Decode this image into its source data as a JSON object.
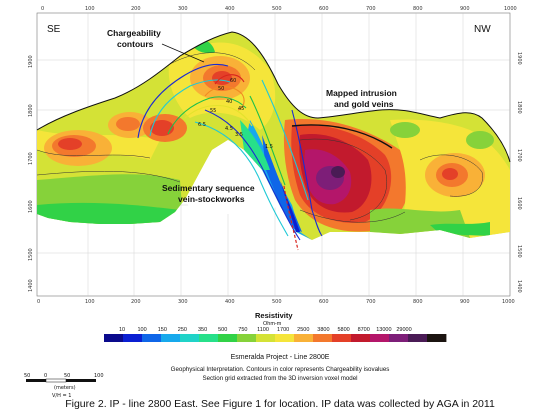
{
  "section": {
    "left_label": "SE",
    "right_label": "NW",
    "top_ticks": [
      "0",
      "100",
      "200",
      "300",
      "400",
      "500",
      "600",
      "700",
      "800",
      "900",
      "1000"
    ],
    "bottom_ticks": [
      "0",
      "100",
      "200",
      "300",
      "400",
      "500",
      "600",
      "700",
      "800",
      "900",
      "1000"
    ],
    "elev_ticks_left": [
      "1900",
      "1800",
      "1700",
      "1600",
      "1500",
      "1400"
    ],
    "elev_ticks_right": [
      "1900",
      "1800",
      "1700",
      "1600",
      "1500",
      "1400"
    ],
    "contour_labels": [
      "40",
      "45",
      "50",
      "55",
      "60",
      "6.5",
      "4.5",
      "3.5",
      "1.5"
    ]
  },
  "annotations": {
    "chargeability": [
      "Chargeability",
      "contours"
    ],
    "intrusion": [
      "Mapped intrusion",
      "and gold veins"
    ],
    "sedimentary": [
      "Sedimentary sequence",
      "vein-stockworks"
    ]
  },
  "legend": {
    "title": "Resistivity",
    "unit": "Ohm-m",
    "values": [
      "10",
      "100",
      "150",
      "250",
      "350",
      "500",
      "750",
      "1100",
      "1700",
      "2500",
      "3800",
      "5800",
      "8700",
      "13000",
      "29000"
    ],
    "colors": [
      "#0a0a8c",
      "#0a1fd2",
      "#0f66e8",
      "#17a9ec",
      "#20d3c8",
      "#27e08a",
      "#31d247",
      "#86d23a",
      "#d4e236",
      "#f5e53a",
      "#f9b137",
      "#f3782d",
      "#e44028",
      "#c21a2d",
      "#b4166a",
      "#7d1e78",
      "#4a1b55",
      "#1b1410"
    ]
  },
  "scale": {
    "ticks": [
      "50",
      "0",
      "50",
      "100"
    ],
    "unit": "(meters)",
    "ratio": "V/H = 1"
  },
  "project": {
    "title": "Esmeralda Project - Line 2800E",
    "line1": "Geophysical Interpretation. Contours in color represents Chargeability isovalues",
    "line2": "Section grid extracted from the 3D inversion voxel model"
  },
  "caption": "Figure 2. IP - line 2800 East. See Figure 1 for location. IP data was collected by AGA in 2011"
}
